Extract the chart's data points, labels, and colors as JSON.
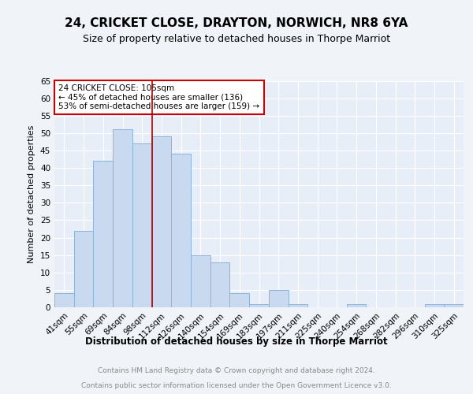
{
  "title": "24, CRICKET CLOSE, DRAYTON, NORWICH, NR8 6YA",
  "subtitle": "Size of property relative to detached houses in Thorpe Marriot",
  "xlabel": "Distribution of detached houses by size in Thorpe Marriot",
  "ylabel": "Number of detached properties",
  "categories": [
    "41sqm",
    "55sqm",
    "69sqm",
    "84sqm",
    "98sqm",
    "112sqm",
    "126sqm",
    "140sqm",
    "154sqm",
    "169sqm",
    "183sqm",
    "197sqm",
    "211sqm",
    "225sqm",
    "240sqm",
    "254sqm",
    "268sqm",
    "282sqm",
    "296sqm",
    "310sqm",
    "325sqm"
  ],
  "values": [
    4,
    22,
    42,
    51,
    47,
    49,
    44,
    15,
    13,
    4,
    1,
    5,
    1,
    0,
    0,
    1,
    0,
    0,
    0,
    1,
    1
  ],
  "bar_color": "#c9d9f0",
  "bar_edge_color": "#8ab4d8",
  "vline_x": 5,
  "vline_color": "#aa0000",
  "annotation_text": "24 CRICKET CLOSE: 105sqm\n← 45% of detached houses are smaller (136)\n53% of semi-detached houses are larger (159) →",
  "annotation_box_color": "#ffffff",
  "annotation_box_edge_color": "#cc0000",
  "ylim": [
    0,
    65
  ],
  "yticks": [
    0,
    5,
    10,
    15,
    20,
    25,
    30,
    35,
    40,
    45,
    50,
    55,
    60,
    65
  ],
  "fig_bg_color": "#f0f4f8",
  "plot_bg_color": "#e8eef8",
  "grid_color": "#ffffff",
  "title_fontsize": 11,
  "subtitle_fontsize": 9,
  "xlabel_fontsize": 8.5,
  "ylabel_fontsize": 8,
  "tick_fontsize": 7.5,
  "annotation_fontsize": 7.5,
  "footer_line1": "Contains HM Land Registry data © Crown copyright and database right 2024.",
  "footer_line2": "Contains public sector information licensed under the Open Government Licence v3.0.",
  "footer_fontsize": 6.5,
  "footer_color": "#888888"
}
